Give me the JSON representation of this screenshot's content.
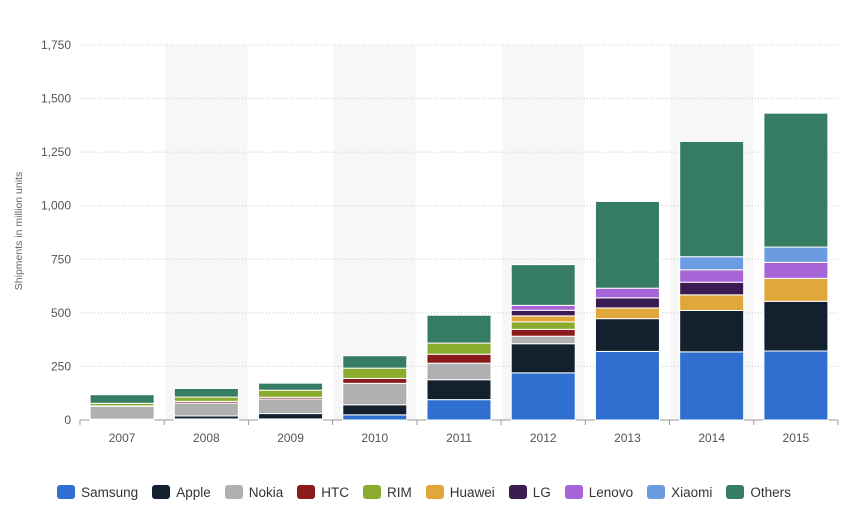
{
  "chart_data": {
    "type": "bar",
    "stacked": true,
    "categories": [
      "2007",
      "2008",
      "2009",
      "2010",
      "2011",
      "2012",
      "2013",
      "2014",
      "2015"
    ],
    "ylabel": "Shipments in million units",
    "xlabel": "",
    "ylim": [
      0,
      1750
    ],
    "y_ticks": [
      "0",
      "250",
      "500",
      "750",
      "1,000",
      "1,250",
      "1,500",
      "1,750"
    ],
    "y_tick_values": [
      0,
      250,
      500,
      750,
      1000,
      1250,
      1500,
      1750
    ],
    "grid": true,
    "legend_position": "bottom",
    "series": [
      {
        "name": "Samsung",
        "color": "#2f6fcf",
        "values": [
          0,
          5,
          5,
          24,
          95,
          220,
          320,
          318,
          322
        ]
      },
      {
        "name": "Apple",
        "color": "#13202e",
        "values": [
          4,
          14,
          25,
          47,
          93,
          136,
          153,
          193,
          232
        ]
      },
      {
        "name": "Nokia",
        "color": "#b0b0b0",
        "values": [
          60,
          60,
          68,
          100,
          77,
          35,
          0,
          0,
          0
        ]
      },
      {
        "name": "HTC",
        "color": "#8b1a1a",
        "values": [
          2,
          8,
          8,
          23,
          42,
          32,
          0,
          0,
          0
        ]
      },
      {
        "name": "RIM",
        "color": "#8aac2e",
        "values": [
          12,
          20,
          33,
          48,
          52,
          35,
          0,
          0,
          0
        ]
      },
      {
        "name": "Huawei",
        "color": "#e0a73a",
        "values": [
          0,
          0,
          0,
          0,
          0,
          28,
          50,
          73,
          107
        ]
      },
      {
        "name": "LG",
        "color": "#3b1c52",
        "values": [
          0,
          0,
          0,
          0,
          0,
          26,
          47,
          59,
          0
        ]
      },
      {
        "name": "Lenovo",
        "color": "#a764d6",
        "values": [
          0,
          0,
          0,
          0,
          0,
          23,
          45,
          58,
          75
        ]
      },
      {
        "name": "Xiaomi",
        "color": "#6b9be0",
        "values": [
          0,
          0,
          0,
          0,
          0,
          0,
          0,
          61,
          71
        ]
      },
      {
        "name": "Others",
        "color": "#367c63",
        "values": [
          40,
          40,
          33,
          58,
          130,
          190,
          405,
          538,
          625
        ]
      }
    ]
  }
}
